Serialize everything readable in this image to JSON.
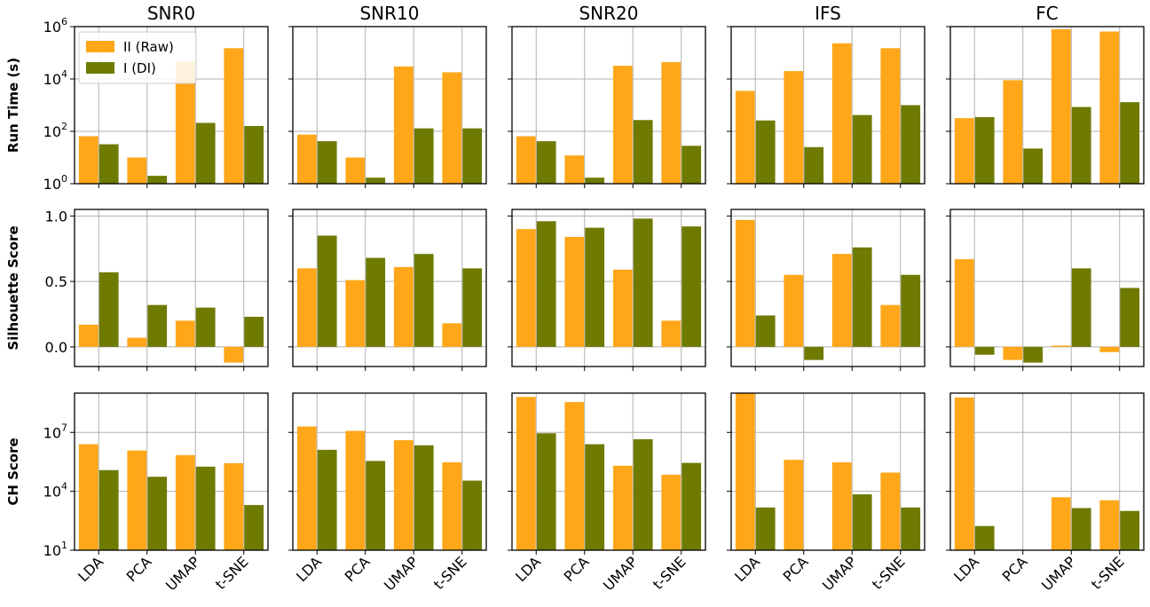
{
  "chart_data": {
    "type": "bar",
    "categories": [
      "LDA",
      "PCA",
      "UMAP",
      "t-SNE"
    ],
    "columns": [
      "SNR0",
      "SNR10",
      "SNR20",
      "IFS",
      "FC"
    ],
    "legend": {
      "location": "upper-left of first panel",
      "entries": [
        "II (Raw)",
        "I (DI)"
      ]
    },
    "colors": {
      "II (Raw)": "#FFA719",
      "I (DI)": "#6E7A00"
    },
    "grid": true,
    "rows": [
      {
        "ylabel": "Run Time (s)",
        "scale": "log",
        "ylim": [
          1,
          1000000
        ],
        "tick_values": [
          1,
          100,
          10000,
          1000000
        ],
        "tick_labels": [
          [
            "10",
            "0"
          ],
          [
            "10",
            "2"
          ],
          [
            "10",
            "4"
          ],
          [
            "10",
            "6"
          ]
        ],
        "panels": [
          {
            "column": "SNR0",
            "series": [
              {
                "name": "II (Raw)",
                "values": [
                  65,
                  10,
                  45000,
                  150000
                ]
              },
              {
                "name": "I (DI)",
                "values": [
                  32,
                  2,
                  210,
                  160
                ]
              }
            ]
          },
          {
            "column": "SNR10",
            "series": [
              {
                "name": "II (Raw)",
                "values": [
                  75,
                  10,
                  30000,
                  18000
                ]
              },
              {
                "name": "I (DI)",
                "values": [
                  42,
                  1.7,
                  130,
                  130
                ]
              }
            ]
          },
          {
            "column": "SNR20",
            "series": [
              {
                "name": "II (Raw)",
                "values": [
                  65,
                  12,
                  32000,
                  44000
                ]
              },
              {
                "name": "I (DI)",
                "values": [
                  42,
                  1.7,
                  270,
                  28
                ]
              }
            ]
          },
          {
            "column": "IFS",
            "series": [
              {
                "name": "II (Raw)",
                "values": [
                  3500,
                  20000,
                  230000,
                  150000
                ]
              },
              {
                "name": "I (DI)",
                "values": [
                  260,
                  25,
                  420,
                  1000
                ]
              }
            ]
          },
          {
            "column": "FC",
            "series": [
              {
                "name": "II (Raw)",
                "values": [
                  320,
                  9000,
                  800000,
                  650000
                ]
              },
              {
                "name": "I (DI)",
                "values": [
                  350,
                  22,
                  850,
                  1300
                ]
              }
            ]
          }
        ]
      },
      {
        "ylabel": "Silhouette Score",
        "scale": "linear",
        "ylim": [
          -0.15,
          1.05
        ],
        "tick_values": [
          0.0,
          0.5,
          1.0
        ],
        "tick_labels": [
          "0.0",
          "0.5",
          "1.0"
        ],
        "panels": [
          {
            "column": "SNR0",
            "series": [
              {
                "name": "II (Raw)",
                "values": [
                  0.17,
                  0.07,
                  0.2,
                  -0.12
                ]
              },
              {
                "name": "I (DI)",
                "values": [
                  0.57,
                  0.32,
                  0.3,
                  0.23
                ]
              }
            ]
          },
          {
            "column": "SNR10",
            "series": [
              {
                "name": "II (Raw)",
                "values": [
                  0.6,
                  0.51,
                  0.61,
                  0.18
                ]
              },
              {
                "name": "I (DI)",
                "values": [
                  0.85,
                  0.68,
                  0.71,
                  0.6
                ]
              }
            ]
          },
          {
            "column": "SNR20",
            "series": [
              {
                "name": "II (Raw)",
                "values": [
                  0.9,
                  0.84,
                  0.59,
                  0.2
                ]
              },
              {
                "name": "I (DI)",
                "values": [
                  0.96,
                  0.91,
                  0.98,
                  0.92
                ]
              }
            ]
          },
          {
            "column": "IFS",
            "series": [
              {
                "name": "II (Raw)",
                "values": [
                  0.97,
                  0.55,
                  0.71,
                  0.32
                ]
              },
              {
                "name": "I (DI)",
                "values": [
                  0.24,
                  -0.1,
                  0.76,
                  0.55
                ]
              }
            ]
          },
          {
            "column": "FC",
            "series": [
              {
                "name": "II (Raw)",
                "values": [
                  0.67,
                  -0.1,
                  0.01,
                  -0.04
                ]
              },
              {
                "name": "I (DI)",
                "values": [
                  -0.06,
                  -0.12,
                  0.6,
                  0.45
                ]
              }
            ]
          }
        ]
      },
      {
        "ylabel": "CH Score",
        "scale": "log",
        "ylim": [
          10,
          1000000000
        ],
        "tick_values": [
          10,
          10000,
          10000000
        ],
        "tick_labels": [
          [
            "10",
            "1"
          ],
          [
            "10",
            "4"
          ],
          [
            "10",
            "7"
          ]
        ],
        "panels": [
          {
            "column": "SNR0",
            "series": [
              {
                "name": "II (Raw)",
                "values": [
                  2500000,
                  1200000,
                  700000,
                  270000
                ]
              },
              {
                "name": "I (DI)",
                "values": [
                  120000,
                  55000,
                  180000,
                  2000
                ]
              }
            ]
          },
          {
            "column": "SNR10",
            "series": [
              {
                "name": "II (Raw)",
                "values": [
                  20000000,
                  12000000,
                  4000000,
                  300000
                ]
              },
              {
                "name": "I (DI)",
                "values": [
                  1300000,
                  350000,
                  2200000,
                  35000
                ]
              }
            ]
          },
          {
            "column": "SNR20",
            "series": [
              {
                "name": "II (Raw)",
                "values": [
                  640000000,
                  350000000,
                  200000,
                  70000
                ]
              },
              {
                "name": "I (DI)",
                "values": [
                  9000000,
                  2500000,
                  4500000,
                  280000
                ]
              }
            ]
          },
          {
            "column": "IFS",
            "series": [
              {
                "name": "II (Raw)",
                "values": [
                  1000000000,
                  400000,
                  300000,
                  90000
                ]
              },
              {
                "name": "I (DI)",
                "values": [
                  1500,
                  10,
                  7000,
                  1500
                ]
              }
            ]
          },
          {
            "column": "FC",
            "series": [
              {
                "name": "II (Raw)",
                "values": [
                  600000000,
                  10,
                  5000,
                  3500
                ]
              },
              {
                "name": "I (DI)",
                "values": [
                  170,
                  10,
                  1400,
                  1000
                ]
              }
            ]
          }
        ]
      }
    ]
  }
}
